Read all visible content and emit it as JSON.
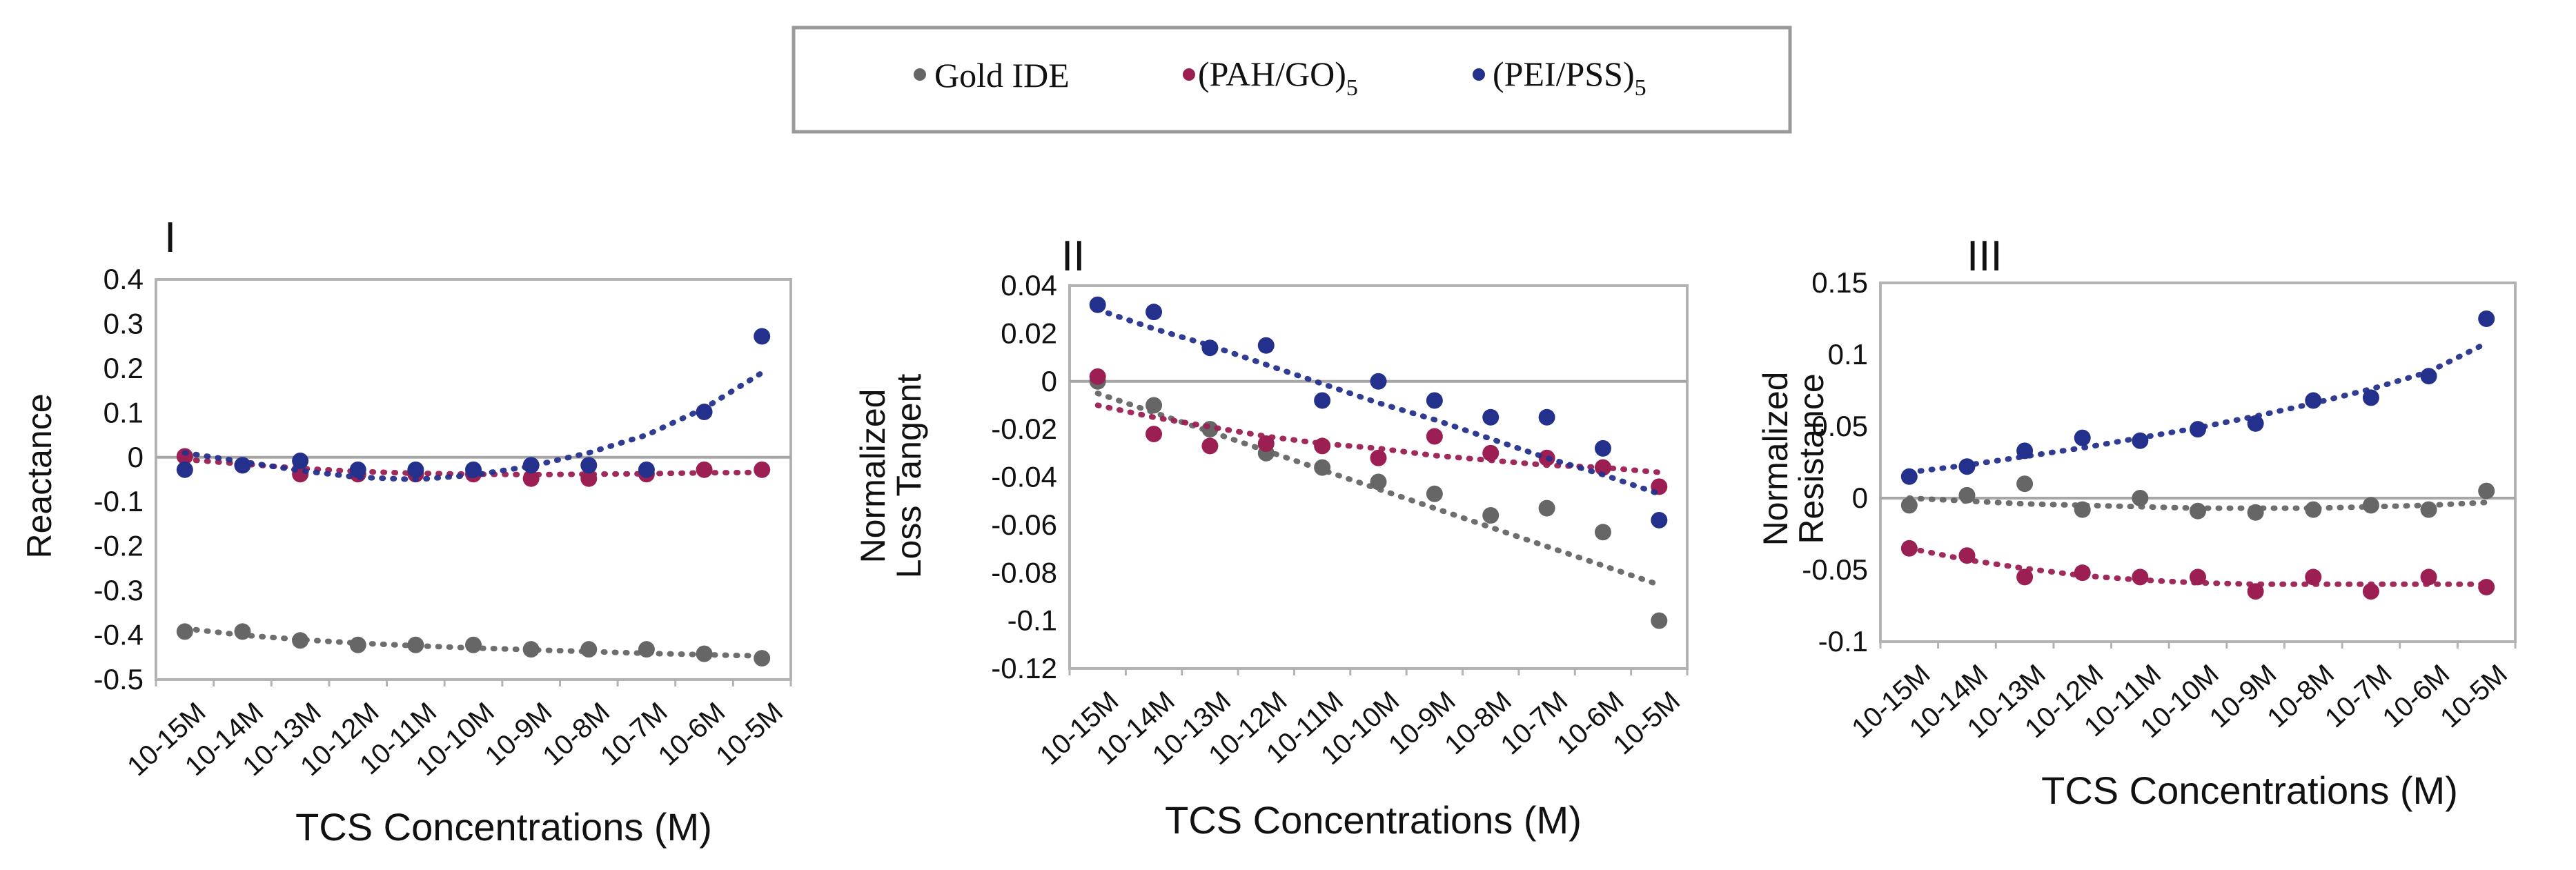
{
  "legend": {
    "entries": [
      {
        "name": "Gold IDE",
        "main": "Gold IDE",
        "sub": "",
        "color": "#666666"
      },
      {
        "name": "(PAH/GO)5",
        "main": "(PAH/GO)",
        "sub": "5",
        "color": "#9c1f53"
      },
      {
        "name": "(PEI/PSS)5",
        "main": "(PEI/PSS)",
        "sub": "5",
        "color": "#24318c"
      }
    ]
  },
  "chart_data": [
    {
      "type": "scatter",
      "panel_label": "I",
      "ylabel": [
        "Reactance"
      ],
      "xlabel": "TCS Concentrations (M)",
      "categories": [
        "10-15M",
        "10-14M",
        "10-13M",
        "10-12M",
        "10-11M",
        "10-10M",
        "10-9M",
        "10-8M",
        "10-7M",
        "10-6M",
        "10-5M"
      ],
      "ylim": [
        -0.5,
        0.4
      ],
      "yticks": [
        0.4,
        0.3,
        0.2,
        0.1,
        0,
        -0.1,
        -0.2,
        -0.3,
        -0.4,
        -0.5
      ],
      "ytick_labels": [
        "0.4",
        "0.3",
        "0.2",
        "0.1",
        "0",
        "-0.1",
        "-0.2",
        "-0.3",
        "-0.4",
        "-0.5"
      ],
      "series": [
        {
          "name": "Gold IDE",
          "color": "#666666",
          "values": [
            -0.392,
            -0.392,
            -0.412,
            -0.422,
            -0.422,
            -0.422,
            -0.432,
            -0.432,
            -0.432,
            -0.442,
            -0.452
          ],
          "trend": [
            -0.385,
            -0.4,
            -0.41,
            -0.418,
            -0.424,
            -0.429,
            -0.433,
            -0.437,
            -0.441,
            -0.444,
            -0.447
          ]
        },
        {
          "name": "(PAH/GO)5",
          "color": "#9c1f53",
          "values": [
            0.002,
            -0.018,
            -0.038,
            -0.038,
            -0.038,
            -0.038,
            -0.048,
            -0.048,
            -0.038,
            -0.028,
            -0.028
          ],
          "trend": [
            -0.005,
            -0.015,
            -0.025,
            -0.032,
            -0.036,
            -0.038,
            -0.039,
            -0.038,
            -0.037,
            -0.035,
            -0.034
          ]
        },
        {
          "name": "(PEI/PSS)5",
          "color": "#24318c",
          "values": [
            -0.028,
            -0.018,
            -0.008,
            -0.028,
            -0.028,
            -0.028,
            -0.018,
            -0.018,
            -0.028,
            0.102,
            0.272
          ],
          "trend": [
            0.01,
            -0.01,
            -0.03,
            -0.045,
            -0.05,
            -0.04,
            -0.02,
            0.01,
            0.05,
            0.11,
            0.19
          ]
        }
      ]
    },
    {
      "type": "scatter",
      "panel_label": "II",
      "ylabel": [
        "Normalized",
        "Loss Tangent"
      ],
      "xlabel": "TCS Concentrations (M)",
      "categories": [
        "10-15M",
        "10-14M",
        "10-13M",
        "10-12M",
        "10-11M",
        "10-10M",
        "10-9M",
        "10-8M",
        "10-7M",
        "10-6M",
        "10-5M"
      ],
      "ylim": [
        -0.12,
        0.04
      ],
      "yticks": [
        0.04,
        0.02,
        0,
        -0.02,
        -0.04,
        -0.06,
        -0.08,
        -0.1,
        -0.12
      ],
      "ytick_labels": [
        "0.04",
        "0.02",
        "0",
        "-0.02",
        "-0.04",
        "-0.06",
        "-0.08",
        "-0.1",
        "-0.12"
      ],
      "series": [
        {
          "name": "Gold IDE",
          "color": "#666666",
          "values": [
            0.0,
            -0.01,
            -0.02,
            -0.03,
            -0.036,
            -0.042,
            -0.047,
            -0.056,
            -0.053,
            -0.063,
            -0.1
          ],
          "trend": [
            -0.005,
            -0.013,
            -0.021,
            -0.029,
            -0.037,
            -0.045,
            -0.053,
            -0.061,
            -0.069,
            -0.077,
            -0.085
          ]
        },
        {
          "name": "(PAH/GO)5",
          "color": "#9c1f53",
          "values": [
            0.002,
            -0.022,
            -0.027,
            -0.026,
            -0.027,
            -0.032,
            -0.023,
            -0.03,
            -0.032,
            -0.036,
            -0.044
          ],
          "trend": [
            -0.01,
            -0.015,
            -0.019,
            -0.023,
            -0.026,
            -0.028,
            -0.031,
            -0.033,
            -0.035,
            -0.036,
            -0.038
          ]
        },
        {
          "name": "(PEI/PSS)5",
          "color": "#24318c",
          "values": [
            0.032,
            0.029,
            0.014,
            0.015,
            -0.008,
            0.0,
            -0.008,
            -0.015,
            -0.015,
            -0.028,
            -0.058
          ],
          "trend": [
            0.03,
            0.022,
            0.015,
            0.007,
            -0.001,
            -0.009,
            -0.016,
            -0.024,
            -0.032,
            -0.039,
            -0.047
          ]
        }
      ]
    },
    {
      "type": "scatter",
      "panel_label": "III",
      "ylabel": [
        "Normalized",
        "Resistance"
      ],
      "xlabel": "TCS Concentrations (M)",
      "categories": [
        "10-15M",
        "10-14M",
        "10-13M",
        "10-12M",
        "10-11M",
        "10-10M",
        "10-9M",
        "10-8M",
        "10-7M",
        "10-6M",
        "10-5M"
      ],
      "ylim": [
        -0.1,
        0.15
      ],
      "yticks": [
        0.15,
        0.1,
        0.05,
        0,
        -0.05,
        -0.1
      ],
      "ytick_labels": [
        "0.15",
        "0.1",
        "0.05",
        "0",
        "-0.05",
        "-0.1"
      ],
      "series": [
        {
          "name": "Gold IDE",
          "color": "#666666",
          "values": [
            -0.005,
            0.002,
            0.01,
            -0.008,
            0.0,
            -0.009,
            -0.01,
            -0.008,
            -0.005,
            -0.008,
            0.005
          ],
          "trend": [
            0.0,
            -0.002,
            -0.004,
            -0.005,
            -0.006,
            -0.007,
            -0.007,
            -0.007,
            -0.006,
            -0.005,
            -0.003
          ]
        },
        {
          "name": "(PAH/GO)5",
          "color": "#9c1f53",
          "values": [
            -0.035,
            -0.04,
            -0.055,
            -0.052,
            -0.055,
            -0.055,
            -0.065,
            -0.055,
            -0.065,
            -0.055,
            -0.062
          ],
          "trend": [
            -0.035,
            -0.043,
            -0.049,
            -0.054,
            -0.057,
            -0.059,
            -0.06,
            -0.06,
            -0.06,
            -0.06,
            -0.06
          ]
        },
        {
          "name": "(PEI/PSS)5",
          "color": "#24318c",
          "values": [
            0.015,
            0.022,
            0.033,
            0.042,
            0.04,
            0.048,
            0.052,
            0.068,
            0.07,
            0.085,
            0.125
          ],
          "trend": [
            0.018,
            0.023,
            0.029,
            0.035,
            0.042,
            0.049,
            0.057,
            0.066,
            0.076,
            0.088,
            0.108
          ]
        }
      ]
    }
  ]
}
